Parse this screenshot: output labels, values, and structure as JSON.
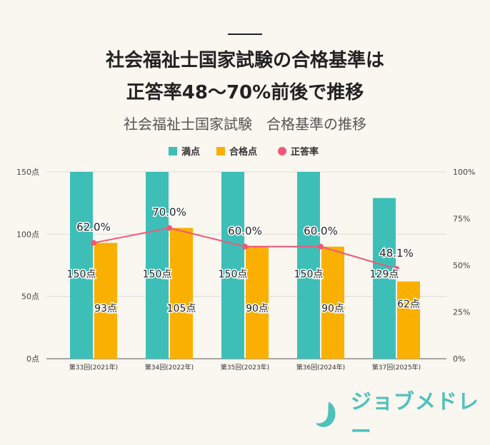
{
  "title_lines": [
    "社会福祉士国家試験の合格基準は",
    "正答率48～70%前後で推移"
  ],
  "chart_data": {
    "type": "bar+line",
    "title": "社会福祉士国家試験　合格基準の推移",
    "categories": [
      "第33回(2021年)",
      "第34回(2022年)",
      "第35回(2023年)",
      "第36回(2024年)",
      "第37回(2025年)"
    ],
    "series": [
      {
        "name": "満点",
        "type": "bar",
        "axis": "left",
        "color": "#3dbfb8",
        "values": [
          150,
          150,
          150,
          150,
          129
        ],
        "labels": [
          "150点",
          "150点",
          "150点",
          "150点",
          "129点"
        ]
      },
      {
        "name": "合格点",
        "type": "bar",
        "axis": "left",
        "color": "#f9b000",
        "values": [
          93,
          105,
          90,
          90,
          62
        ],
        "labels": [
          "93点",
          "105点",
          "90点",
          "90点",
          "62点"
        ]
      },
      {
        "name": "正答率",
        "type": "line",
        "axis": "right",
        "color": "#f0587a",
        "values": [
          62.0,
          70.0,
          60.0,
          60.0,
          48.1
        ],
        "labels": [
          "62.0%",
          "70.0%",
          "60.0%",
          "60.0%",
          "48.1%"
        ]
      }
    ],
    "left_axis": {
      "range": [
        0,
        150
      ],
      "ticks": [
        0,
        50,
        100,
        150
      ],
      "tick_labels": [
        "0点",
        "50点",
        "100点",
        "150点"
      ]
    },
    "right_axis": {
      "range": [
        0,
        100
      ],
      "ticks": [
        0,
        25,
        50,
        75,
        100
      ],
      "tick_labels": [
        "0%",
        "25%",
        "50%",
        "75%",
        "100%"
      ]
    },
    "grid": true,
    "legend": "top"
  },
  "logo": {
    "text": "ジョブメドレー",
    "color": "#4cc2bb"
  }
}
